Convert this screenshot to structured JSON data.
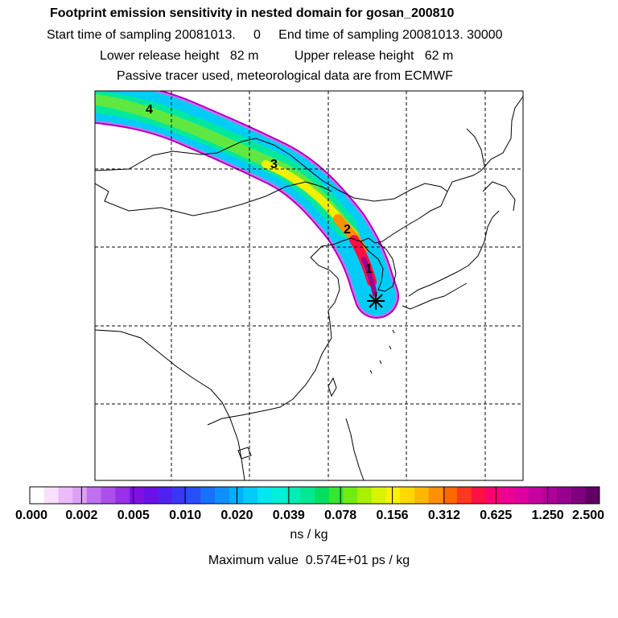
{
  "header": {
    "title": "Footprint emission sensitivity in nested domain for gosan_200810",
    "sampling_line": "Start time of sampling 20081013.     0     End time of sampling 20081013. 30000",
    "release_line": "Lower release height   82 m          Upper release height   62 m",
    "tracer_line": "Passive tracer used, meteorological data are from ECMWF"
  },
  "map": {
    "trajectory_markers": [
      "4",
      "3",
      "2",
      "1"
    ],
    "receptor_symbol": "star-receptor"
  },
  "legend": {
    "tick_labels": [
      "0.000",
      "0.002",
      "0.005",
      "0.010",
      "0.020",
      "0.039",
      "0.078",
      "0.156",
      "0.312",
      "0.625",
      "1.250",
      "2.500"
    ],
    "unit": "ns / kg",
    "max_value": "Maximum value  0.574E+01 ps / kg",
    "colors": [
      "#ffffff",
      "#f8e0fc",
      "#ecbcf8",
      "#dca0f4",
      "#c070f0",
      "#ac50ec",
      "#9a30ea",
      "#8010e0",
      "#6a10e8",
      "#5020f0",
      "#3838f4",
      "#2850f8",
      "#1870ff",
      "#1090ff",
      "#00b0ff",
      "#00ccf8",
      "#00e8f0",
      "#00f0d8",
      "#00ecb8",
      "#00e890",
      "#00e060",
      "#30e830",
      "#70ec10",
      "#a8f000",
      "#d8f400",
      "#fff000",
      "#ffd800",
      "#ffb800",
      "#ff9000",
      "#ff6800",
      "#ff3820",
      "#ff1040",
      "#ff0070",
      "#f00090",
      "#e000a0",
      "#c800a0",
      "#b00098",
      "#980090",
      "#800080",
      "#600060"
    ]
  }
}
